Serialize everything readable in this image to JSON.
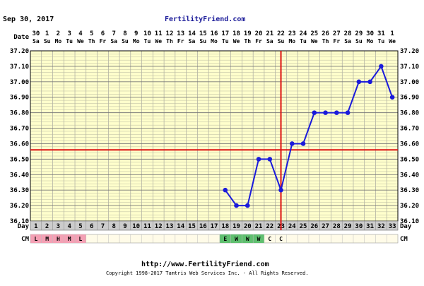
{
  "header": {
    "date": "Sep 30, 2017",
    "site": "FertilityFriend.com"
  },
  "footer": {
    "url": "http://www.FertilityFriend.com",
    "copyright": "Copyright 1998-2017 Tamtris Web Services Inc. - All Rights Reserved."
  },
  "row_labels": {
    "date": "Date",
    "day": "Day",
    "cm": "CM"
  },
  "colors": {
    "plot_bg": "#ffffcc",
    "grid": "#999999",
    "line": "#1a1adb",
    "marker": "#1a1adb",
    "coverline": "#dd1111",
    "ovulation_line": "#dd1111",
    "day_row_bg": "#cccccc",
    "cm_menstrual": "#f4a0b4",
    "cm_fertile": "#5fbf6f",
    "site_text": "#1a1a99"
  },
  "chart_data": {
    "type": "line",
    "dates": [
      {
        "num": "30",
        "dow": "Sa"
      },
      {
        "num": "1",
        "dow": "Su"
      },
      {
        "num": "2",
        "dow": "Mo"
      },
      {
        "num": "3",
        "dow": "Tu"
      },
      {
        "num": "4",
        "dow": "We"
      },
      {
        "num": "5",
        "dow": "Th"
      },
      {
        "num": "6",
        "dow": "Fr"
      },
      {
        "num": "7",
        "dow": "Sa"
      },
      {
        "num": "8",
        "dow": "Su"
      },
      {
        "num": "9",
        "dow": "Mo"
      },
      {
        "num": "10",
        "dow": "Tu"
      },
      {
        "num": "11",
        "dow": "We"
      },
      {
        "num": "12",
        "dow": "Th"
      },
      {
        "num": "13",
        "dow": "Fr"
      },
      {
        "num": "14",
        "dow": "Sa"
      },
      {
        "num": "15",
        "dow": "Su"
      },
      {
        "num": "16",
        "dow": "Mo"
      },
      {
        "num": "17",
        "dow": "Tu"
      },
      {
        "num": "18",
        "dow": "We"
      },
      {
        "num": "19",
        "dow": "Th"
      },
      {
        "num": "20",
        "dow": "Fr"
      },
      {
        "num": "21",
        "dow": "Sa"
      },
      {
        "num": "22",
        "dow": "Su"
      },
      {
        "num": "23",
        "dow": "Mo"
      },
      {
        "num": "24",
        "dow": "Tu"
      },
      {
        "num": "25",
        "dow": "We"
      },
      {
        "num": "26",
        "dow": "Th"
      },
      {
        "num": "27",
        "dow": "Fr"
      },
      {
        "num": "28",
        "dow": "Sa"
      },
      {
        "num": "29",
        "dow": "Su"
      },
      {
        "num": "30",
        "dow": "Mo"
      },
      {
        "num": "31",
        "dow": "Tu"
      },
      {
        "num": "1",
        "dow": "We"
      }
    ],
    "days": [
      1,
      2,
      3,
      4,
      5,
      6,
      7,
      8,
      9,
      10,
      11,
      12,
      13,
      14,
      15,
      16,
      17,
      18,
      19,
      20,
      21,
      22,
      23,
      24,
      25,
      26,
      27,
      28,
      29,
      30,
      31,
      32,
      33
    ],
    "cm": [
      "L",
      "M",
      "H",
      "M",
      "L",
      "",
      "",
      "",
      "",
      "",
      "",
      "",
      "",
      "",
      "",
      "",
      "",
      "E",
      "W",
      "W",
      "W",
      "C",
      "C",
      "",
      "",
      "",
      "",
      "",
      "",
      "",
      "",
      "",
      ""
    ],
    "cm_type": [
      "menstrual",
      "menstrual",
      "menstrual",
      "menstrual",
      "menstrual",
      "",
      "",
      "",
      "",
      "",
      "",
      "",
      "",
      "",
      "",
      "",
      "",
      "fertile",
      "fertile",
      "fertile",
      "fertile",
      "",
      "",
      "",
      "",
      "",
      "",
      "",
      "",
      "",
      "",
      "",
      ""
    ],
    "temps": [
      {
        "day": 18,
        "temp": 36.3
      },
      {
        "day": 19,
        "temp": 36.2
      },
      {
        "day": 20,
        "temp": 36.2
      },
      {
        "day": 21,
        "temp": 36.5
      },
      {
        "day": 22,
        "temp": 36.5
      },
      {
        "day": 23,
        "temp": 36.3
      },
      {
        "day": 24,
        "temp": 36.6
      },
      {
        "day": 25,
        "temp": 36.6
      },
      {
        "day": 26,
        "temp": 36.8
      },
      {
        "day": 27,
        "temp": 36.8
      },
      {
        "day": 28,
        "temp": 36.8
      },
      {
        "day": 29,
        "temp": 36.8
      },
      {
        "day": 30,
        "temp": 37.0
      },
      {
        "day": 31,
        "temp": 37.0
      },
      {
        "day": 32,
        "temp": 37.1
      },
      {
        "day": 33,
        "temp": 36.9
      }
    ],
    "y_ticks": [
      "37.20",
      "37.10",
      "37.00",
      "36.90",
      "36.80",
      "36.70",
      "36.60",
      "36.50",
      "36.40",
      "36.30",
      "36.20",
      "36.10"
    ],
    "ylim": [
      36.1,
      37.2
    ],
    "coverline": 36.56,
    "ovulation_day": 23,
    "grid": true
  }
}
